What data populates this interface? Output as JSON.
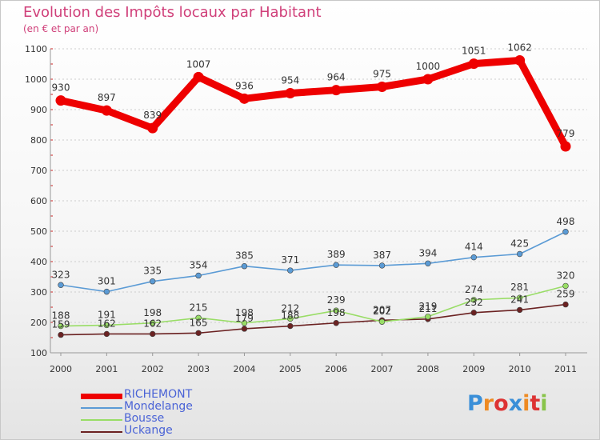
{
  "chart_data": {
    "type": "line",
    "title": "Evolution des Impôts locaux par Habitant",
    "subtitle": "(en € et par an)",
    "categories": [
      "2000",
      "2001",
      "2002",
      "2003",
      "2004",
      "2005",
      "2006",
      "2007",
      "2008",
      "2009",
      "2010",
      "2011"
    ],
    "yticks": [
      "100",
      "200",
      "300",
      "400",
      "500",
      "600",
      "700",
      "800",
      "900",
      "1000",
      "1100"
    ],
    "ylim": [
      100,
      1100
    ],
    "series": [
      {
        "name": "RICHEMONT",
        "color": "#ee0000",
        "values": [
          930,
          897,
          839,
          1007,
          936,
          954,
          964,
          975,
          1000,
          1051,
          1062,
          779
        ],
        "labels": [
          "930",
          "897",
          "839",
          "1007",
          "936",
          "954",
          "964",
          "975",
          "1000",
          "1051",
          "1062",
          "779"
        ]
      },
      {
        "name": "Mondelange",
        "color": "#5b9bd5",
        "values": [
          323,
          301,
          335,
          354,
          385,
          371,
          389,
          387,
          394,
          414,
          425,
          498
        ],
        "labels": [
          "323",
          "301",
          "335",
          "354",
          "385",
          "371",
          "389",
          "387",
          "394",
          "414",
          "425",
          "498"
        ]
      },
      {
        "name": "Bousse",
        "color": "#99dd66",
        "values": [
          188,
          191,
          198,
          215,
          198,
          212,
          239,
          202,
          219,
          274,
          281,
          320
        ],
        "labels": [
          "188",
          "191",
          "198",
          "215",
          "198",
          "212",
          "239",
          "202",
          "219",
          "274",
          "281",
          "320"
        ]
      },
      {
        "name": "Uckange",
        "color": "#6b2222",
        "values": [
          159,
          162,
          162,
          165,
          179,
          188,
          198,
          207,
          211,
          232,
          241,
          259
        ],
        "labels": [
          "159",
          "162",
          "162",
          "165",
          "179",
          "188",
          "198",
          "207",
          "211",
          "232",
          "241",
          "259"
        ]
      }
    ]
  },
  "brand": {
    "letters": [
      "P",
      "r",
      "o",
      "x",
      "i",
      "t",
      "i"
    ],
    "colors": [
      "#3a8fd8",
      "#ee8a22",
      "#dd3333",
      "#3a8fd8",
      "#ee8a22",
      "#dd3333",
      "#88c44a"
    ]
  }
}
